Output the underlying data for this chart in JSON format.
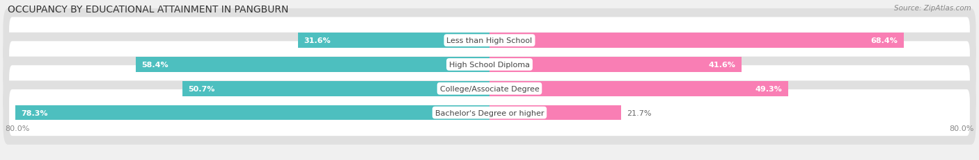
{
  "title": "OCCUPANCY BY EDUCATIONAL ATTAINMENT IN PANGBURN",
  "source": "Source: ZipAtlas.com",
  "categories": [
    "Less than High School",
    "High School Diploma",
    "College/Associate Degree",
    "Bachelor's Degree or higher"
  ],
  "owner_values": [
    31.6,
    58.4,
    50.7,
    78.3
  ],
  "renter_values": [
    68.4,
    41.6,
    49.3,
    21.7
  ],
  "owner_color": "#4DBFBF",
  "renter_color": "#F97EB4",
  "background_color": "#f0f0f0",
  "row_bg_color": "#e0e0e0",
  "row_fill_color": "#ffffff",
  "title_fontsize": 10,
  "source_fontsize": 7.5,
  "label_fontsize": 8,
  "bar_height": 0.62,
  "xlim_left": -80,
  "xlim_right": 80
}
